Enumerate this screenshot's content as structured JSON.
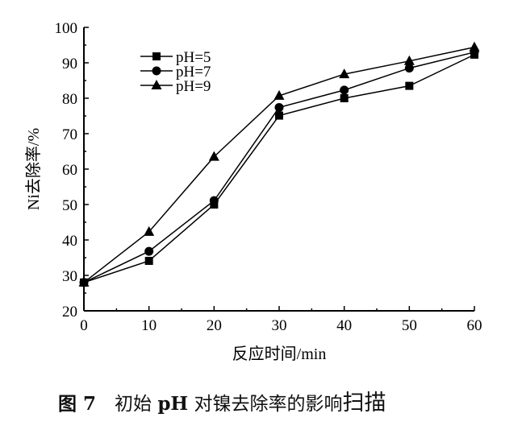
{
  "chart_data": {
    "type": "line",
    "xlabel": "反应时间/min",
    "ylabel": "Ni去除率/%",
    "xlim": [
      0,
      60
    ],
    "ylim": [
      20,
      100
    ],
    "xticks": [
      "0",
      "10",
      "20",
      "30",
      "40",
      "50",
      "60"
    ],
    "yticks": [
      "20",
      "30",
      "40",
      "50",
      "60",
      "70",
      "80",
      "90",
      "100"
    ],
    "grid": false,
    "legend_position": "top-left",
    "x": [
      0,
      10,
      20,
      30,
      40,
      50,
      60
    ],
    "series": [
      {
        "name": "pH=5",
        "marker": "square",
        "values": [
          28,
          34.1,
          50.0,
          75.1,
          80.0,
          83.5,
          92.3
        ]
      },
      {
        "name": "pH=7",
        "marker": "circle",
        "values": [
          28,
          36.8,
          51.1,
          77.4,
          82.3,
          88.5,
          93.0
        ]
      },
      {
        "name": "pH=9",
        "marker": "triangle",
        "values": [
          28,
          42.3,
          63.5,
          80.7,
          86.8,
          90.5,
          94.4
        ]
      }
    ],
    "color": "#000000"
  },
  "caption": {
    "figure": "图 7",
    "text_a": "初始 ",
    "text_bold": "pH",
    "text_b": " 对镍去除率的影响",
    "tail": "扫描"
  }
}
